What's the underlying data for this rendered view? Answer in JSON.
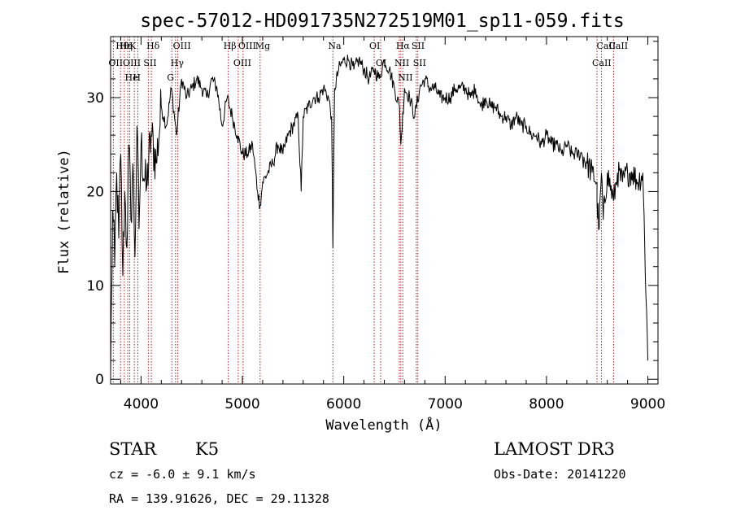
{
  "chart_data": {
    "type": "line",
    "title": "spec-57012-HD091735N272519M01_sp11-059.fits",
    "xlabel": "Wavelength (Å)",
    "ylabel": "Flux (relative)",
    "xlim": [
      3700,
      9100
    ],
    "ylim": [
      -0.5,
      36.5
    ],
    "xticks": [
      4000,
      5000,
      6000,
      7000,
      8000,
      9000
    ],
    "xtick_labels": [
      "4000",
      "5000",
      "6000",
      "7000",
      "8000",
      "9000"
    ],
    "yticks": [
      0,
      10,
      20,
      30
    ],
    "ytick_labels": [
      "0",
      "10",
      "20",
      "30"
    ],
    "series": [
      {
        "name": "flux",
        "x": [
          3700,
          3720,
          3740,
          3760,
          3780,
          3800,
          3820,
          3840,
          3860,
          3880,
          3900,
          3920,
          3940,
          3960,
          3980,
          4000,
          4050,
          4100,
          4150,
          4200,
          4250,
          4300,
          4350,
          4400,
          4450,
          4500,
          4550,
          4600,
          4650,
          4700,
          4750,
          4800,
          4850,
          4900,
          4950,
          5000,
          5050,
          5100,
          5150,
          5175,
          5200,
          5250,
          5300,
          5350,
          5400,
          5450,
          5500,
          5550,
          5580,
          5600,
          5650,
          5700,
          5750,
          5800,
          5850,
          5880,
          5893,
          5910,
          5950,
          6000,
          6050,
          6100,
          6150,
          6200,
          6250,
          6300,
          6350,
          6400,
          6450,
          6500,
          6550,
          6563,
          6600,
          6650,
          6700,
          6750,
          6800,
          6850,
          6900,
          6950,
          7000,
          7050,
          7100,
          7150,
          7200,
          7250,
          7300,
          7350,
          7400,
          7450,
          7500,
          7550,
          7600,
          7650,
          7700,
          7750,
          7800,
          7850,
          7900,
          7950,
          8000,
          8050,
          8100,
          8150,
          8200,
          8250,
          8300,
          8350,
          8400,
          8450,
          8500,
          8498,
          8520,
          8542,
          8560,
          8600,
          8662,
          8700,
          8750,
          8800,
          8850,
          8900,
          8950,
          9000
        ],
        "y": [
          0.5,
          18,
          12,
          22,
          15,
          24,
          11,
          20,
          14,
          25,
          17,
          23,
          13,
          27,
          16,
          25,
          20,
          26,
          23,
          29,
          27,
          31,
          26,
          32,
          30,
          31,
          32,
          31,
          30,
          32,
          31,
          27,
          30,
          28,
          26,
          24,
          24,
          25,
          20,
          18.5,
          21,
          22,
          23,
          25,
          24,
          26,
          27,
          28,
          20,
          28,
          29,
          30,
          30,
          31,
          30,
          28,
          14,
          31,
          33,
          34,
          34,
          33,
          34,
          33,
          32,
          33,
          32,
          34,
          33,
          31,
          29,
          25,
          31,
          30,
          28,
          31,
          32,
          31,
          31,
          30,
          30,
          30,
          31,
          31,
          31,
          30,
          31,
          29,
          30,
          29,
          29,
          28,
          28,
          27,
          28,
          27,
          27,
          26,
          26,
          25,
          26,
          25,
          25,
          24,
          25,
          24,
          24,
          24,
          23,
          22,
          21,
          19,
          16,
          22,
          17,
          22,
          19,
          22,
          21,
          22,
          22,
          21,
          22,
          2
        ]
      }
    ],
    "spectral_lines": [
      {
        "label": "Hθ",
        "wavelength": 3798
      },
      {
        "label": "OII",
        "wavelength": 3727
      },
      {
        "label": "OIII",
        "wavelength": 3869
      },
      {
        "label": "He",
        "wavelength": 3889
      },
      {
        "label": "K",
        "wavelength": 3934
      },
      {
        "label": "H",
        "wavelength": 3968
      },
      {
        "label": "Hη",
        "wavelength": 3835
      },
      {
        "label": "Hδ",
        "wavelength": 4102
      },
      {
        "label": "SII",
        "wavelength": 4072
      },
      {
        "label": "OIII",
        "wavelength": 4363
      },
      {
        "label": "Hγ",
        "wavelength": 4340
      },
      {
        "label": "G",
        "wavelength": 4304
      },
      {
        "label": "Hβ",
        "wavelength": 4861
      },
      {
        "label": "OIII",
        "wavelength": 5007
      },
      {
        "label": "OIII",
        "wavelength": 4959
      },
      {
        "label": "Mg",
        "wavelength": 5175
      },
      {
        "label": "Na",
        "wavelength": 5893
      },
      {
        "label": "OI",
        "wavelength": 6300
      },
      {
        "label": "OI",
        "wavelength": 6364
      },
      {
        "label": "Hα",
        "wavelength": 6563
      },
      {
        "label": "NII",
        "wavelength": 6548
      },
      {
        "label": "NII",
        "wavelength": 6583
      },
      {
        "label": "SII",
        "wavelength": 6716
      },
      {
        "label": "SII",
        "wavelength": 6731
      },
      {
        "label": "CaII",
        "wavelength": 8542
      },
      {
        "label": "CaII",
        "wavelength": 8498
      },
      {
        "label": "CaII",
        "wavelength": 8662
      }
    ]
  },
  "info": {
    "object_class": "STAR",
    "subclass": "K5",
    "survey": "LAMOST DR3",
    "redshift": "cz = -6.0 ± 9.1 km/s",
    "obs_date": "Obs-Date: 20141220",
    "coords": "RA = 139.91626, DEC =  29.11328"
  },
  "colors": {
    "line": "#000000",
    "marker": "#b22222",
    "frame": "#000000",
    "background": "#ffffff"
  }
}
